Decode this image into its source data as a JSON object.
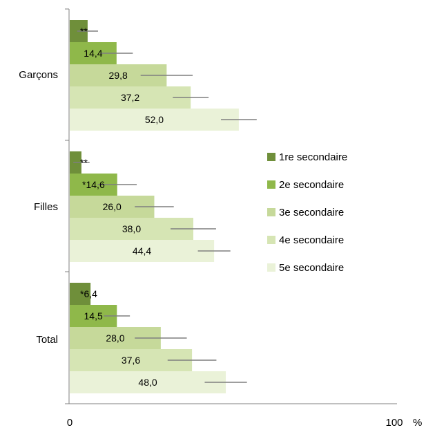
{
  "chart_data": {
    "type": "bar",
    "orientation": "horizontal",
    "categories": [
      "Garçons",
      "Filles",
      "Total"
    ],
    "series": [
      {
        "name": "1re secondaire",
        "values": [
          5.5,
          3.6,
          6.4
        ],
        "error": [
          3.2,
          2.5,
          0
        ],
        "labels": [
          "**",
          "**",
          "*6,4"
        ],
        "color": "#6f8f3a"
      },
      {
        "name": "2e secondaire",
        "values": [
          14.4,
          14.6,
          14.5
        ],
        "error": [
          5,
          6,
          4
        ],
        "labels": [
          "14,4",
          "*14,6",
          "14,5"
        ],
        "color": "#8fb84a"
      },
      {
        "name": "3e secondaire",
        "values": [
          29.8,
          26.0,
          28.0
        ],
        "error": [
          8,
          6,
          8
        ],
        "labels": [
          "29,8",
          "26,0",
          "28,0"
        ],
        "color": "#c6d99a"
      },
      {
        "name": "4e secondaire",
        "values": [
          37.2,
          38.0,
          37.6
        ],
        "error": [
          5.5,
          7,
          7.5
        ],
        "labels": [
          "37,2",
          "38,0",
          "37,6"
        ],
        "color": "#d6e5b4"
      },
      {
        "name": "5e secondaire",
        "values": [
          52.0,
          44.4,
          48.0
        ],
        "error": [
          5.5,
          5,
          6.5
        ],
        "labels": [
          "52,0",
          "44,4",
          "48,0"
        ],
        "color": "#eaf2d8"
      }
    ],
    "xlim": [
      0,
      100
    ],
    "xticks": [
      "0",
      "100"
    ],
    "xunit": "%",
    "legend_position": "right",
    "grid": false,
    "error_bar_color": "#7f7f7f"
  }
}
